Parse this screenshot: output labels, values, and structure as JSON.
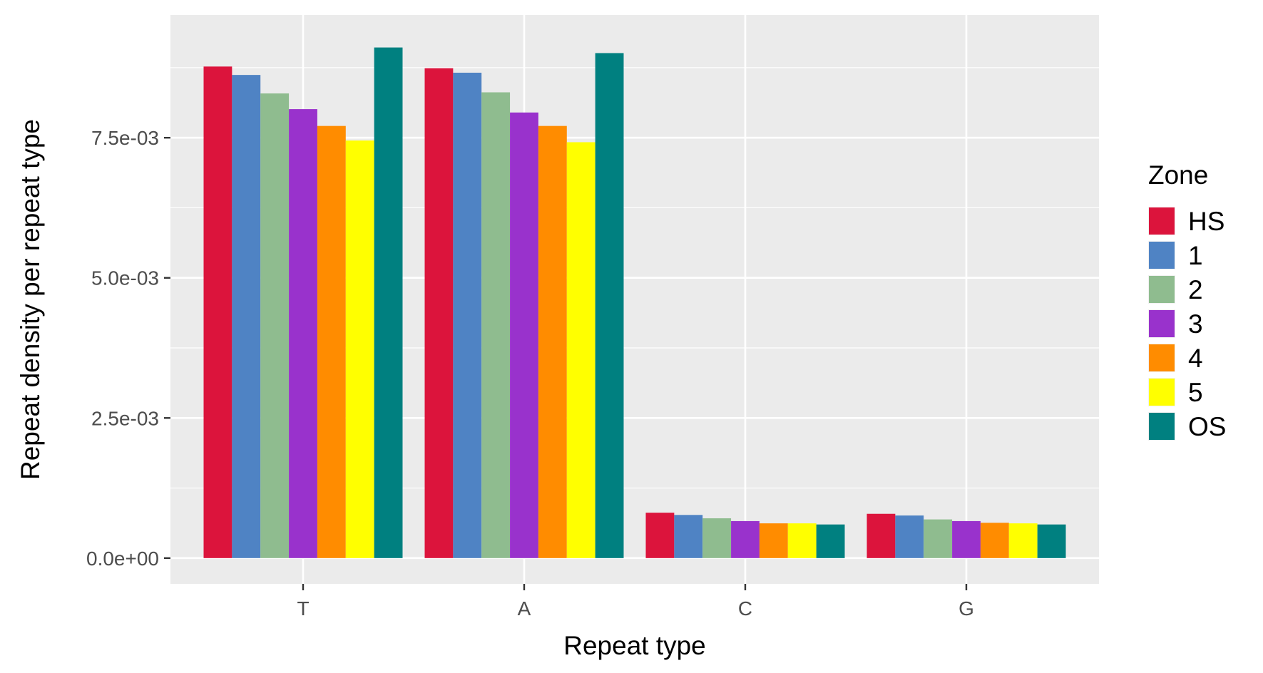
{
  "chart_data": {
    "type": "bar",
    "title": "",
    "xlabel": "Repeat type",
    "ylabel": "Repeat density per repeat type",
    "categories": [
      "T",
      "A",
      "C",
      "G"
    ],
    "ylim": [
      -0.00046,
      0.00969
    ],
    "yticks": [
      {
        "value": 0.0,
        "label": "0.0e+00"
      },
      {
        "value": 0.0025,
        "label": "2.5e-03"
      },
      {
        "value": 0.005,
        "label": "5.0e-03"
      },
      {
        "value": 0.0075,
        "label": "7.5e-03"
      }
    ],
    "grid": true,
    "legend": {
      "title": "Zone",
      "position": "right"
    },
    "series": [
      {
        "name": "HS",
        "color": "#DC143C",
        "values": [
          0.00877,
          0.00874,
          0.00081,
          0.00079
        ]
      },
      {
        "name": "1",
        "color": "#4F83C4",
        "values": [
          0.00862,
          0.00866,
          0.00077,
          0.00076
        ]
      },
      {
        "name": "2",
        "color": "#8FBC8F",
        "values": [
          0.00829,
          0.00831,
          0.00071,
          0.00069
        ]
      },
      {
        "name": "3",
        "color": "#9932CC",
        "values": [
          0.00801,
          0.00795,
          0.00066,
          0.00066
        ]
      },
      {
        "name": "4",
        "color": "#FF8C00",
        "values": [
          0.00771,
          0.00771,
          0.00062,
          0.00063
        ]
      },
      {
        "name": "5",
        "color": "#FFFF00",
        "values": [
          0.00745,
          0.00742,
          0.00062,
          0.00062
        ]
      },
      {
        "name": "OS",
        "color": "#008080",
        "values": [
          0.00911,
          0.00901,
          0.0006,
          0.0006
        ]
      }
    ]
  }
}
